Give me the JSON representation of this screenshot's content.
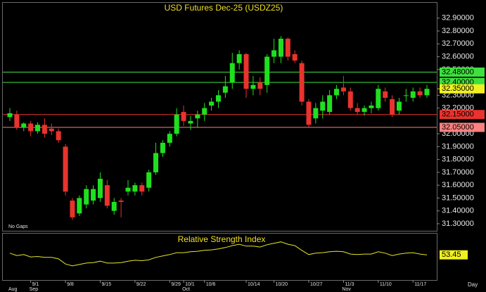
{
  "chart_data": {
    "type": "candlestick",
    "title": "USD Futures Dec-25 (USDZ25)",
    "categories": [
      null,
      null,
      null,
      "9/1",
      null,
      null,
      null,
      null,
      "9/8",
      null,
      null,
      null,
      null,
      "9/15",
      null,
      null,
      null,
      null,
      "9/22",
      null,
      null,
      null,
      null,
      "9/29",
      null,
      "10/1",
      null,
      null,
      "10/6",
      null,
      null,
      null,
      null,
      null,
      "10/14",
      null,
      null,
      null,
      "10/20",
      null,
      null,
      null,
      null,
      "10/27",
      null,
      null,
      null,
      null,
      "11/3",
      null,
      null,
      null,
      null,
      "11/10",
      null,
      null,
      null,
      null,
      "11/17",
      null,
      null
    ],
    "month_categories": [
      "Aug",
      null,
      null,
      "Sep",
      null,
      null,
      null,
      null,
      null,
      null,
      null,
      null,
      null,
      null,
      null,
      null,
      null,
      null,
      null,
      null,
      null,
      null,
      null,
      null,
      null,
      "Oct",
      null,
      null,
      null,
      null,
      null,
      null,
      null,
      null,
      null,
      null,
      null,
      null,
      null,
      null,
      null,
      null,
      null,
      null,
      null,
      null,
      null,
      null,
      "Nov",
      null,
      null,
      null,
      null,
      null,
      null,
      null,
      null,
      null,
      null,
      null,
      null
    ],
    "open": [
      32.13,
      32.15,
      32.05,
      32.08,
      32.02,
      32.07,
      32.04,
      32.02,
      31.9,
      31.48,
      31.38,
      31.45,
      31.48,
      31.5,
      31.6,
      31.4,
      31.48,
      31.55,
      31.55,
      31.6,
      31.58,
      31.7,
      31.85,
      31.93,
      32.0,
      32.17,
      32.08,
      32.12,
      32.15,
      32.22,
      32.25,
      32.32,
      32.4,
      32.55,
      32.62,
      32.35,
      32.4,
      32.38,
      32.6,
      32.6,
      32.74,
      32.62,
      32.55,
      32.25,
      32.12,
      32.18,
      32.17,
      32.3,
      32.36,
      32.33,
      32.2,
      32.17,
      32.2,
      32.2,
      32.33,
      32.27,
      32.18,
      32.3,
      32.28,
      32.33,
      32.3
    ],
    "high": [
      32.2,
      32.18,
      32.09,
      32.1,
      32.09,
      32.12,
      32.08,
      32.04,
      31.92,
      31.5,
      31.52,
      31.6,
      31.6,
      31.7,
      31.64,
      31.5,
      31.5,
      31.64,
      31.62,
      31.62,
      31.72,
      31.93,
      31.95,
      32.02,
      32.2,
      32.22,
      32.14,
      32.18,
      32.24,
      32.28,
      32.34,
      32.45,
      32.63,
      32.65,
      32.63,
      32.45,
      32.44,
      32.62,
      32.74,
      32.76,
      32.75,
      32.65,
      32.57,
      32.27,
      32.24,
      32.3,
      32.34,
      32.38,
      32.45,
      32.36,
      32.24,
      32.22,
      32.25,
      32.38,
      32.36,
      32.3,
      32.28,
      32.35,
      32.36,
      32.36,
      32.38
    ],
    "low": [
      32.1,
      32.03,
      32.02,
      31.98,
      32.0,
      31.97,
      31.99,
      31.93,
      31.52,
      31.33,
      31.36,
      31.42,
      31.45,
      31.47,
      31.42,
      31.37,
      31.35,
      31.52,
      31.52,
      31.52,
      31.55,
      31.68,
      31.82,
      31.9,
      31.98,
      32.06,
      32.03,
      32.05,
      32.1,
      32.18,
      32.2,
      32.28,
      32.35,
      32.5,
      32.28,
      32.3,
      32.3,
      32.32,
      32.55,
      32.55,
      32.57,
      32.55,
      32.22,
      32.05,
      32.08,
      32.12,
      32.15,
      32.27,
      32.3,
      32.18,
      32.15,
      32.14,
      32.16,
      32.18,
      32.25,
      32.13,
      32.15,
      32.25,
      32.25,
      32.28,
      32.28
    ],
    "close": [
      32.16,
      32.05,
      32.08,
      32.02,
      32.07,
      32.0,
      32.02,
      31.95,
      31.55,
      31.35,
      31.5,
      31.57,
      31.57,
      31.65,
      31.44,
      31.47,
      31.47,
      31.58,
      31.6,
      31.55,
      31.7,
      31.85,
      31.93,
      32.0,
      32.15,
      32.1,
      32.1,
      32.15,
      32.2,
      32.25,
      32.3,
      32.37,
      32.55,
      32.62,
      32.35,
      32.38,
      32.35,
      32.6,
      32.65,
      32.74,
      32.6,
      32.57,
      32.25,
      32.07,
      32.2,
      32.25,
      32.3,
      32.35,
      32.33,
      32.2,
      32.17,
      32.2,
      32.22,
      32.35,
      32.28,
      32.15,
      32.25,
      32.3,
      32.33,
      32.3,
      32.35
    ],
    "up_color": "#1fe01f",
    "down_color": "#e8332e",
    "ylim": [
      31.245,
      33.025
    ],
    "yticks": [
      {
        "value": 32.9,
        "label": "32.90000"
      },
      {
        "value": 32.8,
        "label": "32.80000"
      },
      {
        "value": 32.7,
        "label": "32.70000"
      },
      {
        "value": 32.6,
        "label": "32.60000"
      },
      {
        "value": 32.5,
        "label": "32.50000"
      },
      {
        "value": 32.3,
        "label": "32.30000"
      },
      {
        "value": 32.2,
        "label": "32.20000"
      },
      {
        "value": 32.0,
        "label": "32.00000"
      },
      {
        "value": 31.9,
        "label": "31.90000"
      },
      {
        "value": 31.8,
        "label": "31.80000"
      },
      {
        "value": 31.7,
        "label": "31.70000"
      },
      {
        "value": 31.6,
        "label": "31.60000"
      },
      {
        "value": 31.5,
        "label": "31.50000"
      },
      {
        "value": 31.4,
        "label": "31.40000"
      },
      {
        "value": 31.3,
        "label": "31.30000"
      }
    ],
    "levels": [
      {
        "value": 32.48,
        "label": "32.48000",
        "color": "#3ee03e"
      },
      {
        "value": 32.4,
        "label": "32.40000",
        "color": "#3ee03e"
      },
      {
        "value": 32.15,
        "label": "32.15000",
        "color": "#e8332e"
      },
      {
        "value": 32.05,
        "label": "32.05000",
        "color": "#ff8080"
      }
    ],
    "last_price": {
      "value": 32.35,
      "label": "32.35000"
    },
    "annotation": "No Gaps",
    "x_label": "Day",
    "indicator": {
      "title": "Relative Strength Index",
      "color": "#e6e62a",
      "ylim": [
        0,
        100
      ],
      "values": [
        57,
        52,
        54,
        49,
        50,
        48,
        48,
        45,
        34,
        30,
        33,
        36,
        37,
        40,
        36,
        36,
        37,
        40,
        42,
        41,
        43,
        48,
        51,
        54,
        58,
        58,
        60,
        61,
        63,
        64,
        66,
        69,
        73,
        76,
        72,
        72,
        70,
        75,
        78,
        81,
        76,
        73,
        63,
        54,
        57,
        58,
        60,
        61,
        60,
        55,
        54,
        55,
        55,
        60,
        57,
        52,
        55,
        57,
        58,
        55,
        53.45
      ]
    }
  }
}
